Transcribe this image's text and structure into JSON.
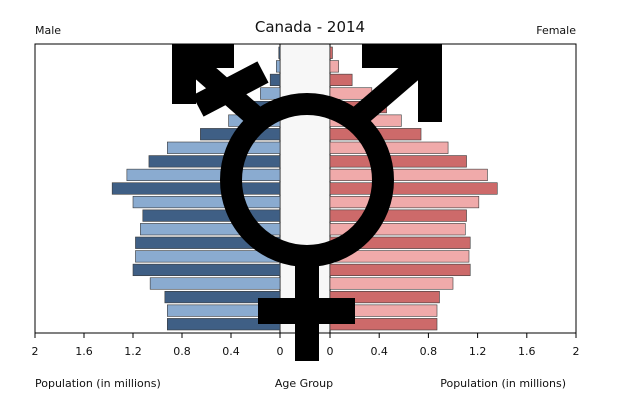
{
  "chart_data": {
    "type": "bar",
    "orientation": "horizontal",
    "layout": "population-pyramid",
    "title": "Canada - 2014",
    "left_header": "Male",
    "right_header": "Female",
    "xlabel_left": "Population (in millions)",
    "xlabel_center": "Age Group",
    "xlabel_right": "Population (in millions)",
    "xlim": [
      0,
      2
    ],
    "x_ticks": [
      "2",
      "1.6",
      "1.2",
      "0.8",
      "0.4",
      "0"
    ],
    "x_ticks_right": [
      "0",
      "0.4",
      "0.8",
      "1.2",
      "1.6",
      "2"
    ],
    "grid": false,
    "overlay_icon": "transgender-symbol",
    "series": [
      {
        "side": "left",
        "values": [
          0.01,
          0.03,
          0.08,
          0.16,
          0.28,
          0.42,
          0.65,
          0.92,
          1.07,
          1.25,
          1.37,
          1.2,
          1.12,
          1.14,
          1.18,
          1.18,
          1.2,
          1.06,
          0.94,
          0.92,
          0.92
        ],
        "colors": [
          "#3f5f85",
          "#8aabd0"
        ]
      },
      {
        "side": "right",
        "values": [
          0.02,
          0.07,
          0.18,
          0.34,
          0.46,
          0.58,
          0.74,
          0.96,
          1.11,
          1.28,
          1.36,
          1.21,
          1.11,
          1.1,
          1.14,
          1.13,
          1.14,
          1.0,
          0.89,
          0.87,
          0.87
        ],
        "colors": [
          "#cd6a6a",
          "#f0aaaa"
        ]
      }
    ]
  }
}
